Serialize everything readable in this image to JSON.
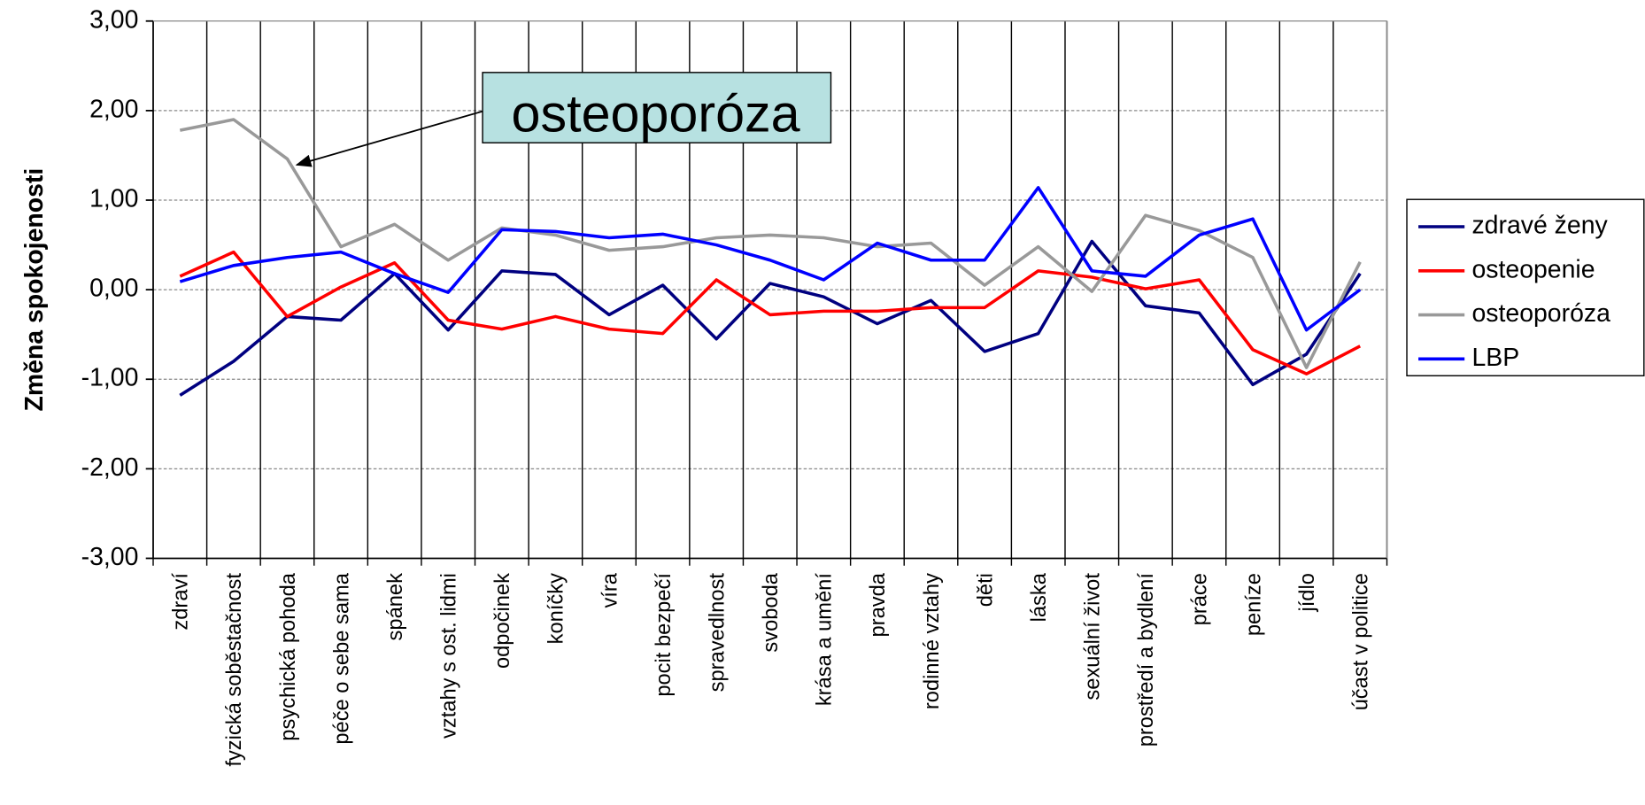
{
  "chart_data": {
    "type": "line",
    "y_label": "Změna spokojenosti",
    "annotation": "osteoporóza",
    "categories": [
      "zdraví",
      "fyzická soběstačnost",
      "psychická pohoda",
      "péče o sebe sama",
      "spánek",
      "vztahy s ost. lidmi",
      "odpočinek",
      "koníčky",
      "víra",
      "pocit bezpečí",
      "spravedlnost",
      "svoboda",
      "krása a umění",
      "pravda",
      "rodinné vztahy",
      "děti",
      "láska",
      "sexuální život",
      "prostředí a bydlení",
      "práce",
      "peníze",
      "jídlo",
      "účast v politice"
    ],
    "series": [
      {
        "name": "zdravé ženy",
        "color": "#000080",
        "values": [
          -1.18,
          -0.8,
          -0.3,
          -0.34,
          0.18,
          -0.45,
          0.21,
          0.17,
          -0.28,
          0.05,
          -0.55,
          0.07,
          -0.08,
          -0.38,
          -0.12,
          -0.69,
          -0.49,
          0.54,
          -0.18,
          -0.26,
          -1.06,
          -0.72,
          0.18
        ]
      },
      {
        "name": "osteopenie",
        "color": "#ff0000",
        "values": [
          0.15,
          0.42,
          -0.3,
          0.03,
          0.3,
          -0.34,
          -0.44,
          -0.3,
          -0.44,
          -0.49,
          0.11,
          -0.28,
          -0.24,
          -0.24,
          -0.2,
          -0.2,
          0.21,
          0.14,
          0.01,
          0.11,
          -0.67,
          -0.94,
          -0.63
        ]
      },
      {
        "name": "osteoporóza",
        "color": "#999999",
        "values": [
          1.78,
          1.9,
          1.46,
          0.48,
          0.73,
          0.33,
          0.69,
          0.61,
          0.44,
          0.48,
          0.58,
          0.61,
          0.58,
          0.48,
          0.52,
          0.05,
          0.48,
          -0.02,
          0.83,
          0.66,
          0.36,
          -0.87,
          0.31
        ]
      },
      {
        "name": "LBP",
        "color": "#0000ff",
        "values": [
          0.09,
          0.27,
          0.36,
          0.42,
          0.18,
          -0.03,
          0.67,
          0.65,
          0.58,
          0.62,
          0.5,
          0.33,
          0.11,
          0.52,
          0.33,
          0.33,
          1.14,
          0.21,
          0.15,
          0.61,
          0.79,
          -0.45,
          0.0
        ]
      }
    ],
    "ylim": [
      -3,
      3
    ],
    "yticks": [
      {
        "value": -3,
        "label": "-3,00"
      },
      {
        "value": -2,
        "label": "-2,00"
      },
      {
        "value": -1,
        "label": "-1,00"
      },
      {
        "value": 0,
        "label": "0,00"
      },
      {
        "value": 1,
        "label": "1,00"
      },
      {
        "value": 2,
        "label": "2,00"
      },
      {
        "value": 3,
        "label": "3,00"
      }
    ],
    "grid": true,
    "legend": "right"
  }
}
